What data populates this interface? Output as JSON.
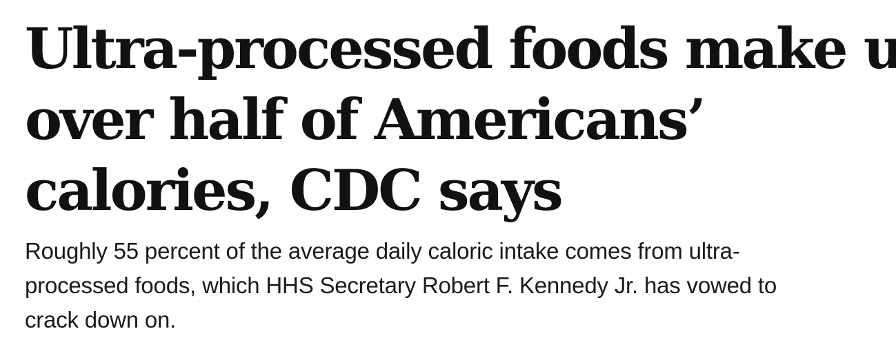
{
  "headline": {
    "lines": [
      "Ultra-processed foods make up",
      "over half of Americans’",
      "calories, CDC says"
    ]
  },
  "dek": {
    "lines": [
      "Roughly 55 percent of the average daily caloric intake comes from ultra-",
      "processed foods, which HHS Secretary Robert F. Kennedy Jr. has vowed to",
      "crack down on."
    ]
  }
}
